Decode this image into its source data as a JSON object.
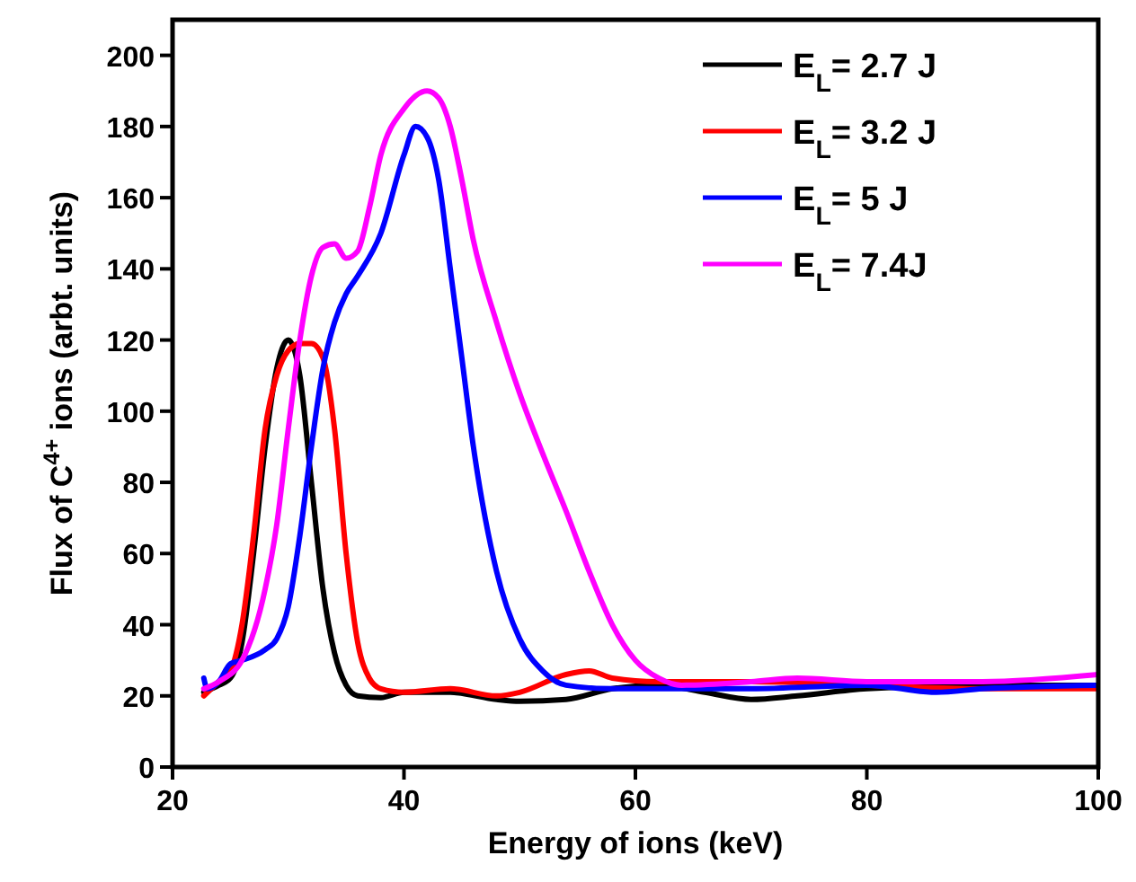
{
  "chart_data": {
    "type": "line",
    "xlabel": "Energy of ions (keV)",
    "ylabel": "Flux of C$^{4+}$ ions (arbt. units)",
    "xlim": [
      20,
      100
    ],
    "xticks": [
      20,
      40,
      60,
      80,
      100
    ],
    "ylim": [
      0,
      210
    ],
    "yticks": [
      0,
      20,
      40,
      60,
      80,
      100,
      120,
      140,
      160,
      180,
      200
    ],
    "legend": "top right",
    "grid": false,
    "series": [
      {
        "name": "E$_{L}$= 2.7 J",
        "color": "#000000",
        "x": [
          22.7,
          24,
          25,
          26,
          27,
          28,
          29,
          30,
          31,
          32,
          33,
          34,
          35,
          36,
          38,
          40,
          44,
          48,
          50,
          54,
          58,
          62,
          66,
          70,
          74,
          80,
          90,
          100
        ],
        "values": [
          21,
          23,
          25,
          35,
          60,
          90,
          112,
          120,
          110,
          80,
          50,
          32,
          23,
          20,
          19.5,
          21,
          21,
          19,
          18.5,
          19,
          22,
          23,
          21,
          19,
          20,
          22,
          23,
          23
        ]
      },
      {
        "name": "E$_{L}$= 3.2 J",
        "color": "#ff0000",
        "x": [
          22.7,
          24,
          25,
          26,
          27,
          28,
          29,
          30,
          31,
          32,
          33,
          34,
          35,
          36,
          37,
          38,
          40,
          44,
          48,
          50,
          54,
          56,
          58,
          62,
          70,
          90,
          100
        ],
        "values": [
          20,
          24,
          27,
          40,
          65,
          95,
          110,
          117,
          119,
          119,
          115,
          95,
          60,
          35,
          25,
          22,
          21,
          22,
          20,
          21,
          26,
          27,
          25,
          24,
          24,
          22,
          22
        ]
      },
      {
        "name": "E$_{L}$= 5 J",
        "color": "#0000ff",
        "x": [
          22.7,
          23,
          24,
          25,
          26,
          28,
          29,
          30,
          31,
          32,
          33,
          34,
          35,
          36,
          38,
          40,
          41,
          42,
          43,
          44,
          45,
          46,
          48,
          50,
          52,
          54,
          58,
          70,
          80,
          86,
          90,
          100
        ],
        "values": [
          25,
          22,
          24,
          29,
          30,
          33,
          36,
          45,
          65,
          90,
          112,
          125,
          133,
          138,
          150,
          172,
          180,
          177,
          165,
          140,
          115,
          90,
          55,
          36,
          27,
          23,
          22,
          22,
          23,
          21,
          22,
          23
        ]
      },
      {
        "name": "E$_{L}$= 7.4J",
        "color": "#ff00ff",
        "x": [
          22.7,
          24,
          26,
          28,
          29,
          30,
          31,
          32,
          33,
          34,
          35,
          36,
          37,
          38,
          40,
          42,
          43,
          44,
          45,
          46,
          48,
          50,
          52,
          54,
          56,
          58,
          60,
          62,
          64,
          70,
          74,
          80,
          90,
          100
        ],
        "values": [
          22,
          24,
          30,
          50,
          68,
          95,
          120,
          138,
          146,
          147,
          143,
          145,
          157,
          172,
          185,
          190,
          188,
          180,
          165,
          148,
          125,
          105,
          88,
          72,
          55,
          40,
          30,
          25,
          23,
          24,
          25,
          24,
          24,
          26
        ]
      }
    ]
  }
}
